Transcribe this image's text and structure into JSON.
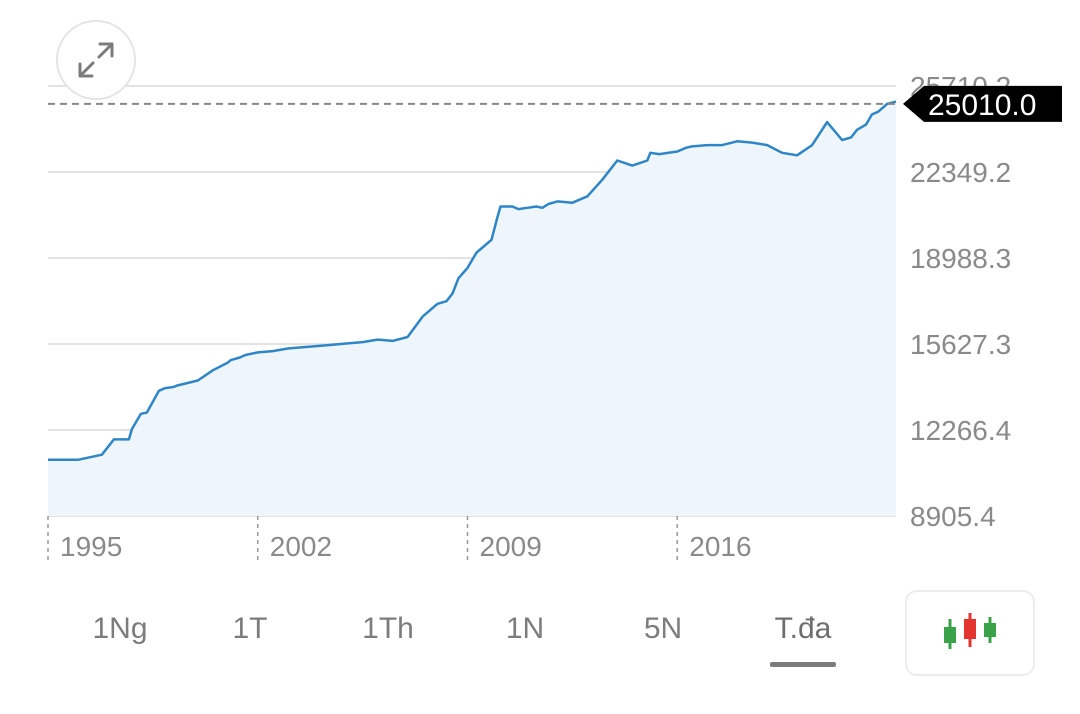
{
  "current_price_label": "25010.0",
  "ranges": [
    {
      "label": "1Ng",
      "active": false
    },
    {
      "label": "1T",
      "active": false
    },
    {
      "label": "1Th",
      "active": false
    },
    {
      "label": "1N",
      "active": false
    },
    {
      "label": "5N",
      "active": false
    },
    {
      "label": "T.đa",
      "active": true
    }
  ],
  "icons": {
    "expand": "expand-icon",
    "candlestick": "candlestick-icon"
  },
  "colors": {
    "line": "#2f86c6",
    "fill": "#eef6fc",
    "grid": "#e2e2e2",
    "label_bg": "#000000",
    "candle_green": "#3aa34a",
    "candle_red": "#e3342f"
  },
  "chart_data": {
    "type": "area",
    "title": "",
    "xlabel": "",
    "ylabel": "",
    "x_ticks": [
      "1995",
      "2002",
      "2009",
      "2016"
    ],
    "y_ticks": [
      "25710.2",
      "22349.2",
      "18988.3",
      "15627.3",
      "12266.4",
      "8905.4"
    ],
    "ylim": [
      8905.4,
      25710.2
    ],
    "xlim": [
      1994.0,
      2022.3
    ],
    "current_value": 25010.0,
    "series": [
      {
        "x": [
          1994.0,
          1995.0,
          1995.8,
          1996.2,
          1996.7,
          1996.8,
          1997.1,
          1997.3,
          1997.7,
          1997.9,
          1998.2,
          1998.3,
          1999.0,
          1999.5,
          2000.0,
          2000.1,
          2000.4,
          2000.6,
          2001.0,
          2001.5,
          2002.0,
          2002.5,
          2003.0,
          2003.5,
          2004.0,
          2004.5,
          2005.0,
          2005.5,
          2006.0,
          2006.5,
          2007.0,
          2007.3,
          2007.5,
          2007.7,
          2008.0,
          2008.3,
          2008.5,
          2008.8,
          2009.0,
          2009.1,
          2009.5,
          2009.7,
          2010.0,
          2010.3,
          2010.5,
          2010.7,
          2011.0,
          2011.5,
          2012.0,
          2012.5,
          2013.0,
          2013.5,
          2014.0,
          2014.1,
          2014.4,
          2015.0,
          2015.3,
          2015.5,
          2016.0,
          2016.5,
          2017.0,
          2017.5,
          2018.0,
          2018.5,
          2019.0,
          2019.5,
          2020.0,
          2020.5,
          2020.8,
          2021.0,
          2021.3,
          2021.5,
          2021.7,
          2021.9,
          2022.0,
          2022.3
        ],
        "y": [
          11100,
          11100,
          11300,
          11900,
          11900,
          12300,
          12900,
          12950,
          13800,
          13900,
          13950,
          14000,
          14200,
          14600,
          14900,
          15000,
          15100,
          15200,
          15300,
          15350,
          15450,
          15500,
          15550,
          15600,
          15650,
          15700,
          15800,
          15750,
          15900,
          16700,
          17200,
          17300,
          17600,
          18200,
          18600,
          19200,
          19400,
          19700,
          20600,
          21000,
          21000,
          20900,
          20950,
          21000,
          20950,
          21100,
          21200,
          21150,
          21400,
          22050,
          22800,
          22600,
          22800,
          23100,
          23050,
          23150,
          23300,
          23350,
          23400,
          23400,
          23550,
          23500,
          23400,
          23100,
          23000,
          23400,
          24300,
          23600,
          23700,
          24000,
          24200,
          24600,
          24700,
          24900,
          25010,
          25100
        ]
      }
    ],
    "grid": true,
    "legend": "none"
  }
}
